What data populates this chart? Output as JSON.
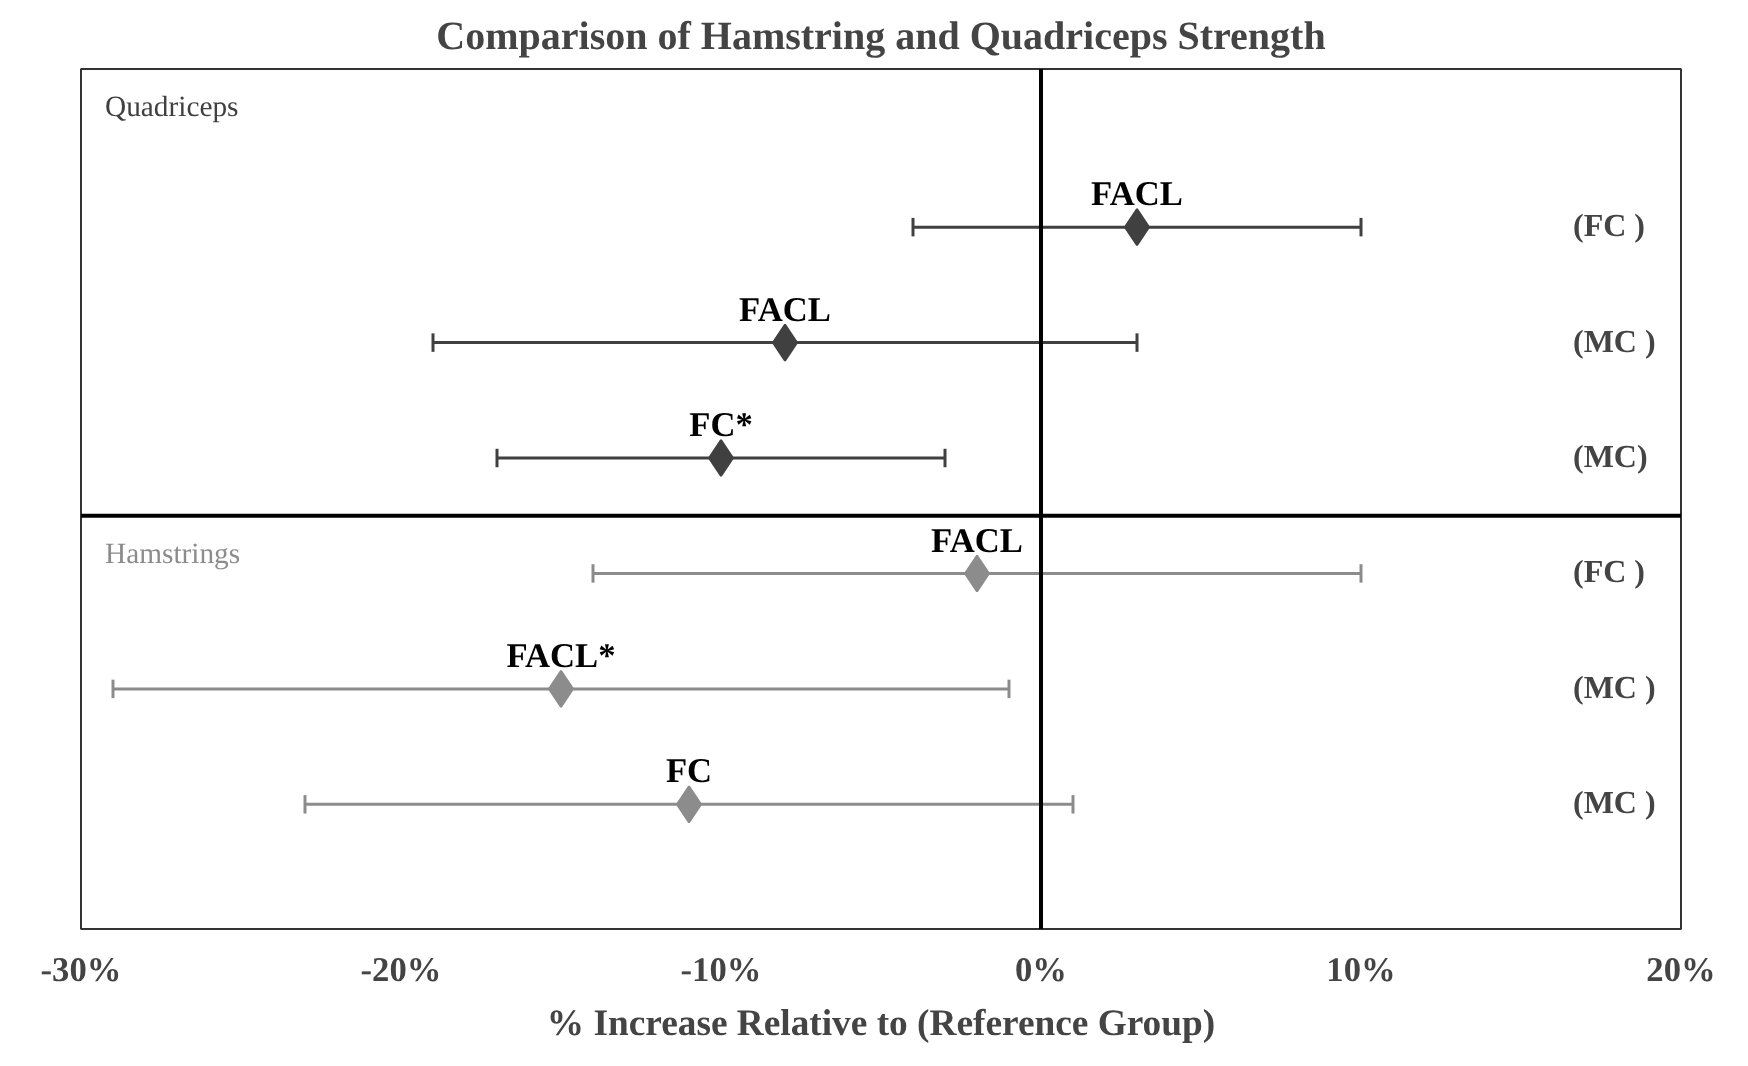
{
  "chart_data": {
    "type": "scatter",
    "orientation": "horizontal",
    "title": "Comparison of Hamstring and Quadriceps Strength",
    "xlabel": "% Increase Relative to (Reference Group)",
    "categories": [
      "(FC )",
      "(MC )",
      "(MC)",
      "(FC )",
      "(MC )",
      "(MC )"
    ],
    "series": [
      {
        "name": "Quadriceps",
        "color": "#404040",
        "values": [
          3,
          -8,
          -10,
          null,
          null,
          null
        ],
        "errors": [
          [
            -4,
            10
          ],
          [
            -19,
            3
          ],
          [
            -17,
            -3
          ],
          null,
          null,
          null
        ],
        "value_labels": [
          "FACL",
          "FACL",
          "FC*",
          null,
          null,
          null
        ]
      },
      {
        "name": "Hamstrings",
        "color": "#8c8c8c",
        "values": [
          null,
          null,
          null,
          -2,
          -15,
          -11
        ],
        "errors": [
          null,
          null,
          null,
          [
            -14,
            10
          ],
          [
            -29,
            -1
          ],
          [
            -23,
            1
          ]
        ],
        "value_labels": [
          null,
          null,
          null,
          "FACL",
          "FACL*",
          "FC"
        ]
      }
    ],
    "xlim": [
      -30,
      20
    ],
    "xticks": [
      {
        "value": -30,
        "label": "-30%"
      },
      {
        "value": -20,
        "label": "-20%"
      },
      {
        "value": -10,
        "label": "-10%"
      },
      {
        "value": 0,
        "label": "0%"
      },
      {
        "value": 10,
        "label": "10%"
      },
      {
        "value": 20,
        "label": "20%"
      }
    ],
    "ref_lines": [
      {
        "axis": "x",
        "value": 0,
        "color": "#000000"
      }
    ],
    "marker": "diamond",
    "grid": false
  }
}
